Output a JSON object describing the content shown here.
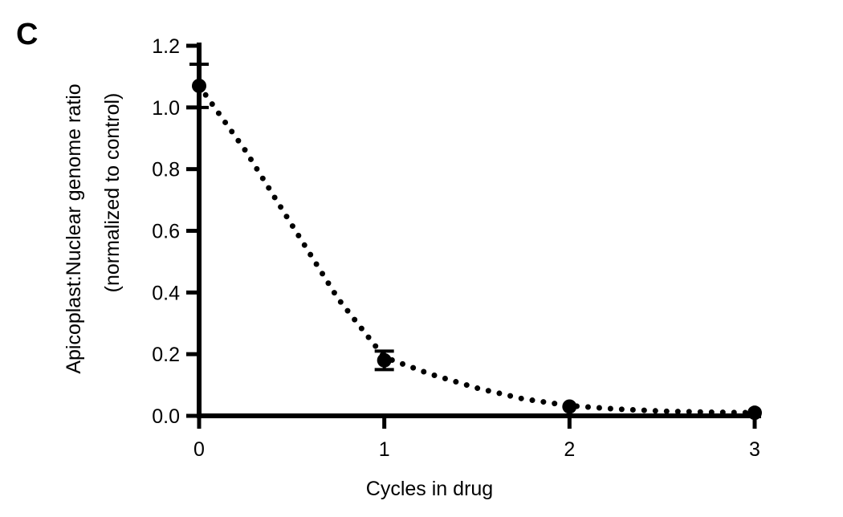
{
  "panel_label": "C",
  "chart_data": {
    "type": "line",
    "title": "",
    "xlabel": "Cycles in drug",
    "ylabel_lines": [
      "Apicoplast:Nuclear genome ratio",
      "(normalized to control)"
    ],
    "xlim": [
      0,
      3
    ],
    "ylim": [
      0,
      1.2
    ],
    "x_ticks": [
      "0",
      "1",
      "2",
      "3"
    ],
    "y_ticks": [
      "0.0",
      "0.2",
      "0.4",
      "0.6",
      "0.8",
      "1.0",
      "1.2"
    ],
    "grid": false,
    "line_style": "dotted",
    "color": "#000000",
    "points": [
      {
        "x": 0,
        "y": 1.07,
        "err": 0.07
      },
      {
        "x": 1,
        "y": 0.18,
        "err": 0.03
      },
      {
        "x": 2,
        "y": 0.03,
        "err": 0
      },
      {
        "x": 3,
        "y": 0.01,
        "err": 0
      }
    ],
    "fit_curve": [
      {
        "x": 0.0,
        "y": 1.07
      },
      {
        "x": 0.25,
        "y": 0.86
      },
      {
        "x": 0.5,
        "y": 0.62
      },
      {
        "x": 0.75,
        "y": 0.38
      },
      {
        "x": 1.0,
        "y": 0.19
      },
      {
        "x": 1.25,
        "y": 0.135
      },
      {
        "x": 1.5,
        "y": 0.09
      },
      {
        "x": 1.75,
        "y": 0.055
      },
      {
        "x": 2.0,
        "y": 0.033
      },
      {
        "x": 2.25,
        "y": 0.022
      },
      {
        "x": 2.5,
        "y": 0.015
      },
      {
        "x": 2.75,
        "y": 0.012
      },
      {
        "x": 3.0,
        "y": 0.01
      }
    ]
  }
}
